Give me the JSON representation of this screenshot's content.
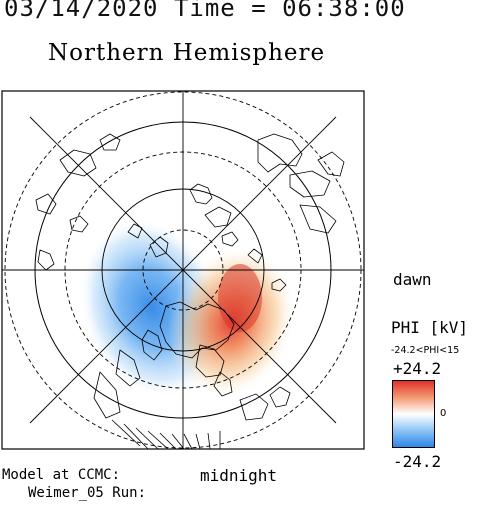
{
  "header": {
    "datetime": "03/14/2020 Time = 06:38:00",
    "hemisphere": "Northern Hemisphere"
  },
  "map": {
    "dawn_label": "dawn",
    "midnight_label": "midnight"
  },
  "colorbar": {
    "title": "PHI [kV]",
    "range_text": "-24.2<PHI<15",
    "max_label": "+24.2",
    "zero_label": "0",
    "min_label": "-24.2",
    "colors": {
      "negative": "#2e86e6",
      "neutral": "#ffffff",
      "positive": "#e0322a"
    }
  },
  "footer": {
    "model_line": "Model at CCMC:",
    "run_line": "Weimer_05 Run:"
  }
}
